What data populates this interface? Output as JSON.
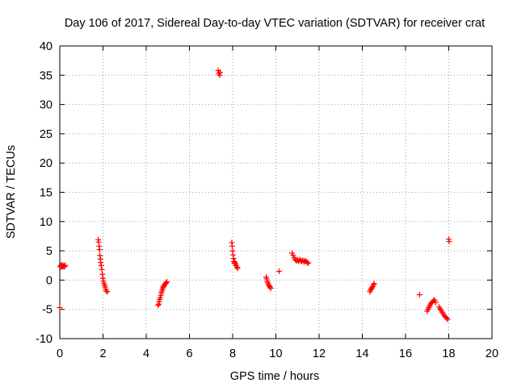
{
  "chart_data": {
    "type": "scatter",
    "title": "Day 106 of 2017, Sidereal Day-to-day VTEC variation (SDTVAR) for receiver crat",
    "xlabel": "GPS time / hours",
    "ylabel": "SDTVAR / TECUs",
    "xlim": [
      0,
      20
    ],
    "ylim": [
      -10,
      40
    ],
    "x_ticks": [
      0,
      2,
      4,
      6,
      8,
      10,
      12,
      14,
      16,
      18,
      20
    ],
    "y_ticks": [
      -10,
      -5,
      0,
      5,
      10,
      15,
      20,
      25,
      30,
      35,
      40
    ],
    "x_tick_labels": [
      "0",
      "2",
      "4",
      "6",
      "8",
      "10",
      "12",
      "14",
      "16",
      "18",
      "20"
    ],
    "y_tick_labels": [
      "-10",
      "-5",
      "0",
      "5",
      "10",
      "15",
      "20",
      "25",
      "30",
      "35",
      "40"
    ],
    "grid": true,
    "legend": "none",
    "marker": "plus",
    "marker_color": "#ff0000",
    "series": [
      {
        "name": "SDTVAR",
        "points": [
          [
            0.0,
            -4.7
          ],
          [
            0.02,
            2.3
          ],
          [
            0.05,
            2.5
          ],
          [
            0.08,
            2.2
          ],
          [
            0.1,
            2.6
          ],
          [
            0.12,
            2.4
          ],
          [
            0.15,
            2.3
          ],
          [
            0.18,
            2.5
          ],
          [
            0.2,
            2.4
          ],
          [
            0.22,
            2.3
          ],
          [
            0.25,
            2.5
          ],
          [
            1.78,
            6.9
          ],
          [
            1.8,
            6.5
          ],
          [
            1.82,
            5.8
          ],
          [
            1.84,
            5.2
          ],
          [
            1.86,
            4.2
          ],
          [
            1.88,
            3.6
          ],
          [
            1.9,
            3.0
          ],
          [
            1.92,
            2.5
          ],
          [
            1.95,
            1.8
          ],
          [
            1.97,
            1.0
          ],
          [
            2.0,
            0.3
          ],
          [
            2.02,
            -0.2
          ],
          [
            2.05,
            -0.6
          ],
          [
            2.08,
            -0.9
          ],
          [
            2.1,
            -1.2
          ],
          [
            2.13,
            -1.6
          ],
          [
            2.16,
            -1.9
          ],
          [
            2.2,
            -2.0
          ],
          [
            4.55,
            -4.3
          ],
          [
            4.58,
            -4.1
          ],
          [
            4.6,
            -3.7
          ],
          [
            4.62,
            -3.3
          ],
          [
            4.65,
            -3.0
          ],
          [
            4.68,
            -2.6
          ],
          [
            4.7,
            -2.2
          ],
          [
            4.72,
            -1.9
          ],
          [
            4.75,
            -1.6
          ],
          [
            4.78,
            -1.3
          ],
          [
            4.8,
            -1.1
          ],
          [
            4.83,
            -0.9
          ],
          [
            4.86,
            -0.7
          ],
          [
            4.9,
            -0.6
          ],
          [
            4.93,
            -0.4
          ],
          [
            4.96,
            -0.3
          ],
          [
            7.33,
            35.8
          ],
          [
            7.36,
            35.3
          ],
          [
            7.4,
            35.0
          ],
          [
            7.42,
            35.5
          ],
          [
            7.96,
            6.4
          ],
          [
            7.98,
            5.8
          ],
          [
            8.0,
            5.0
          ],
          [
            8.02,
            4.3
          ],
          [
            8.04,
            3.7
          ],
          [
            8.06,
            3.2
          ],
          [
            8.08,
            2.9
          ],
          [
            8.1,
            3.1
          ],
          [
            8.13,
            2.8
          ],
          [
            8.16,
            2.5
          ],
          [
            8.2,
            2.2
          ],
          [
            8.23,
            2.0
          ],
          [
            9.55,
            0.5
          ],
          [
            9.58,
            0.2
          ],
          [
            9.6,
            -0.2
          ],
          [
            9.63,
            -0.5
          ],
          [
            9.66,
            -0.8
          ],
          [
            9.7,
            -1.0
          ],
          [
            9.73,
            -1.2
          ],
          [
            9.76,
            -1.4
          ],
          [
            10.15,
            1.5
          ],
          [
            10.75,
            4.6
          ],
          [
            10.8,
            4.2
          ],
          [
            10.85,
            3.8
          ],
          [
            10.9,
            3.5
          ],
          [
            10.95,
            3.3
          ],
          [
            11.0,
            3.4
          ],
          [
            11.05,
            3.2
          ],
          [
            11.1,
            3.5
          ],
          [
            11.15,
            3.3
          ],
          [
            11.2,
            3.2
          ],
          [
            11.25,
            3.4
          ],
          [
            11.3,
            3.1
          ],
          [
            11.35,
            3.3
          ],
          [
            11.4,
            3.2
          ],
          [
            11.45,
            3.0
          ],
          [
            11.5,
            2.9
          ],
          [
            14.35,
            -2.0
          ],
          [
            14.38,
            -1.7
          ],
          [
            14.42,
            -1.5
          ],
          [
            14.45,
            -1.3
          ],
          [
            14.48,
            -1.1
          ],
          [
            14.52,
            -0.8
          ],
          [
            14.55,
            -0.6
          ],
          [
            16.65,
            -2.5
          ],
          [
            17.0,
            -5.3
          ],
          [
            17.04,
            -5.0
          ],
          [
            17.08,
            -4.7
          ],
          [
            17.12,
            -4.4
          ],
          [
            17.16,
            -4.1
          ],
          [
            17.2,
            -3.9
          ],
          [
            17.25,
            -3.7
          ],
          [
            17.3,
            -3.5
          ],
          [
            17.35,
            -3.4
          ],
          [
            17.4,
            -3.8
          ],
          [
            17.55,
            -4.6
          ],
          [
            17.6,
            -4.9
          ],
          [
            17.65,
            -5.2
          ],
          [
            17.7,
            -5.5
          ],
          [
            17.75,
            -5.8
          ],
          [
            17.8,
            -6.1
          ],
          [
            17.85,
            -6.3
          ],
          [
            17.9,
            -6.5
          ],
          [
            17.95,
            -6.7
          ],
          [
            18.0,
            7.0
          ],
          [
            18.02,
            6.6
          ]
        ]
      }
    ]
  }
}
